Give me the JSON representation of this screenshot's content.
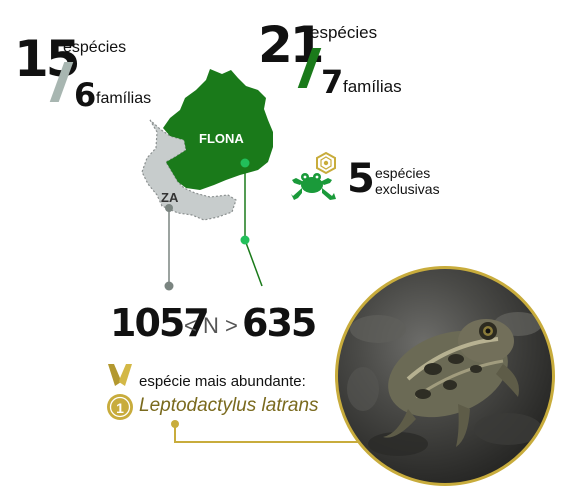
{
  "za": {
    "count": "15",
    "species_label": "espécies",
    "families_count": "6",
    "families_label": "famílias",
    "map_label": "ZA"
  },
  "flona": {
    "count": "21",
    "species_label": "espécies",
    "families_count": "7",
    "families_label": "famílias",
    "map_label": "FLONA"
  },
  "exclusive": {
    "count": "5",
    "line1": "espécies",
    "line2": "exclusivas"
  },
  "abundance": {
    "left": "1057",
    "middle": "< N >",
    "right": "635"
  },
  "most_abundant": {
    "label": "espécie mais abundante:",
    "species": "Leptodactylus latrans",
    "medal_rank": "1"
  },
  "colors": {
    "flona_green": "#1a7a1a",
    "za_gray": "#c7cccc",
    "slash_gray": "#a8b6b1",
    "gold": "#c8ac3c",
    "bright_green": "#22c05a"
  },
  "icons": {
    "frog": "frog-icon",
    "badge": "exclusive-badge-icon",
    "medal": "medal-icon"
  }
}
